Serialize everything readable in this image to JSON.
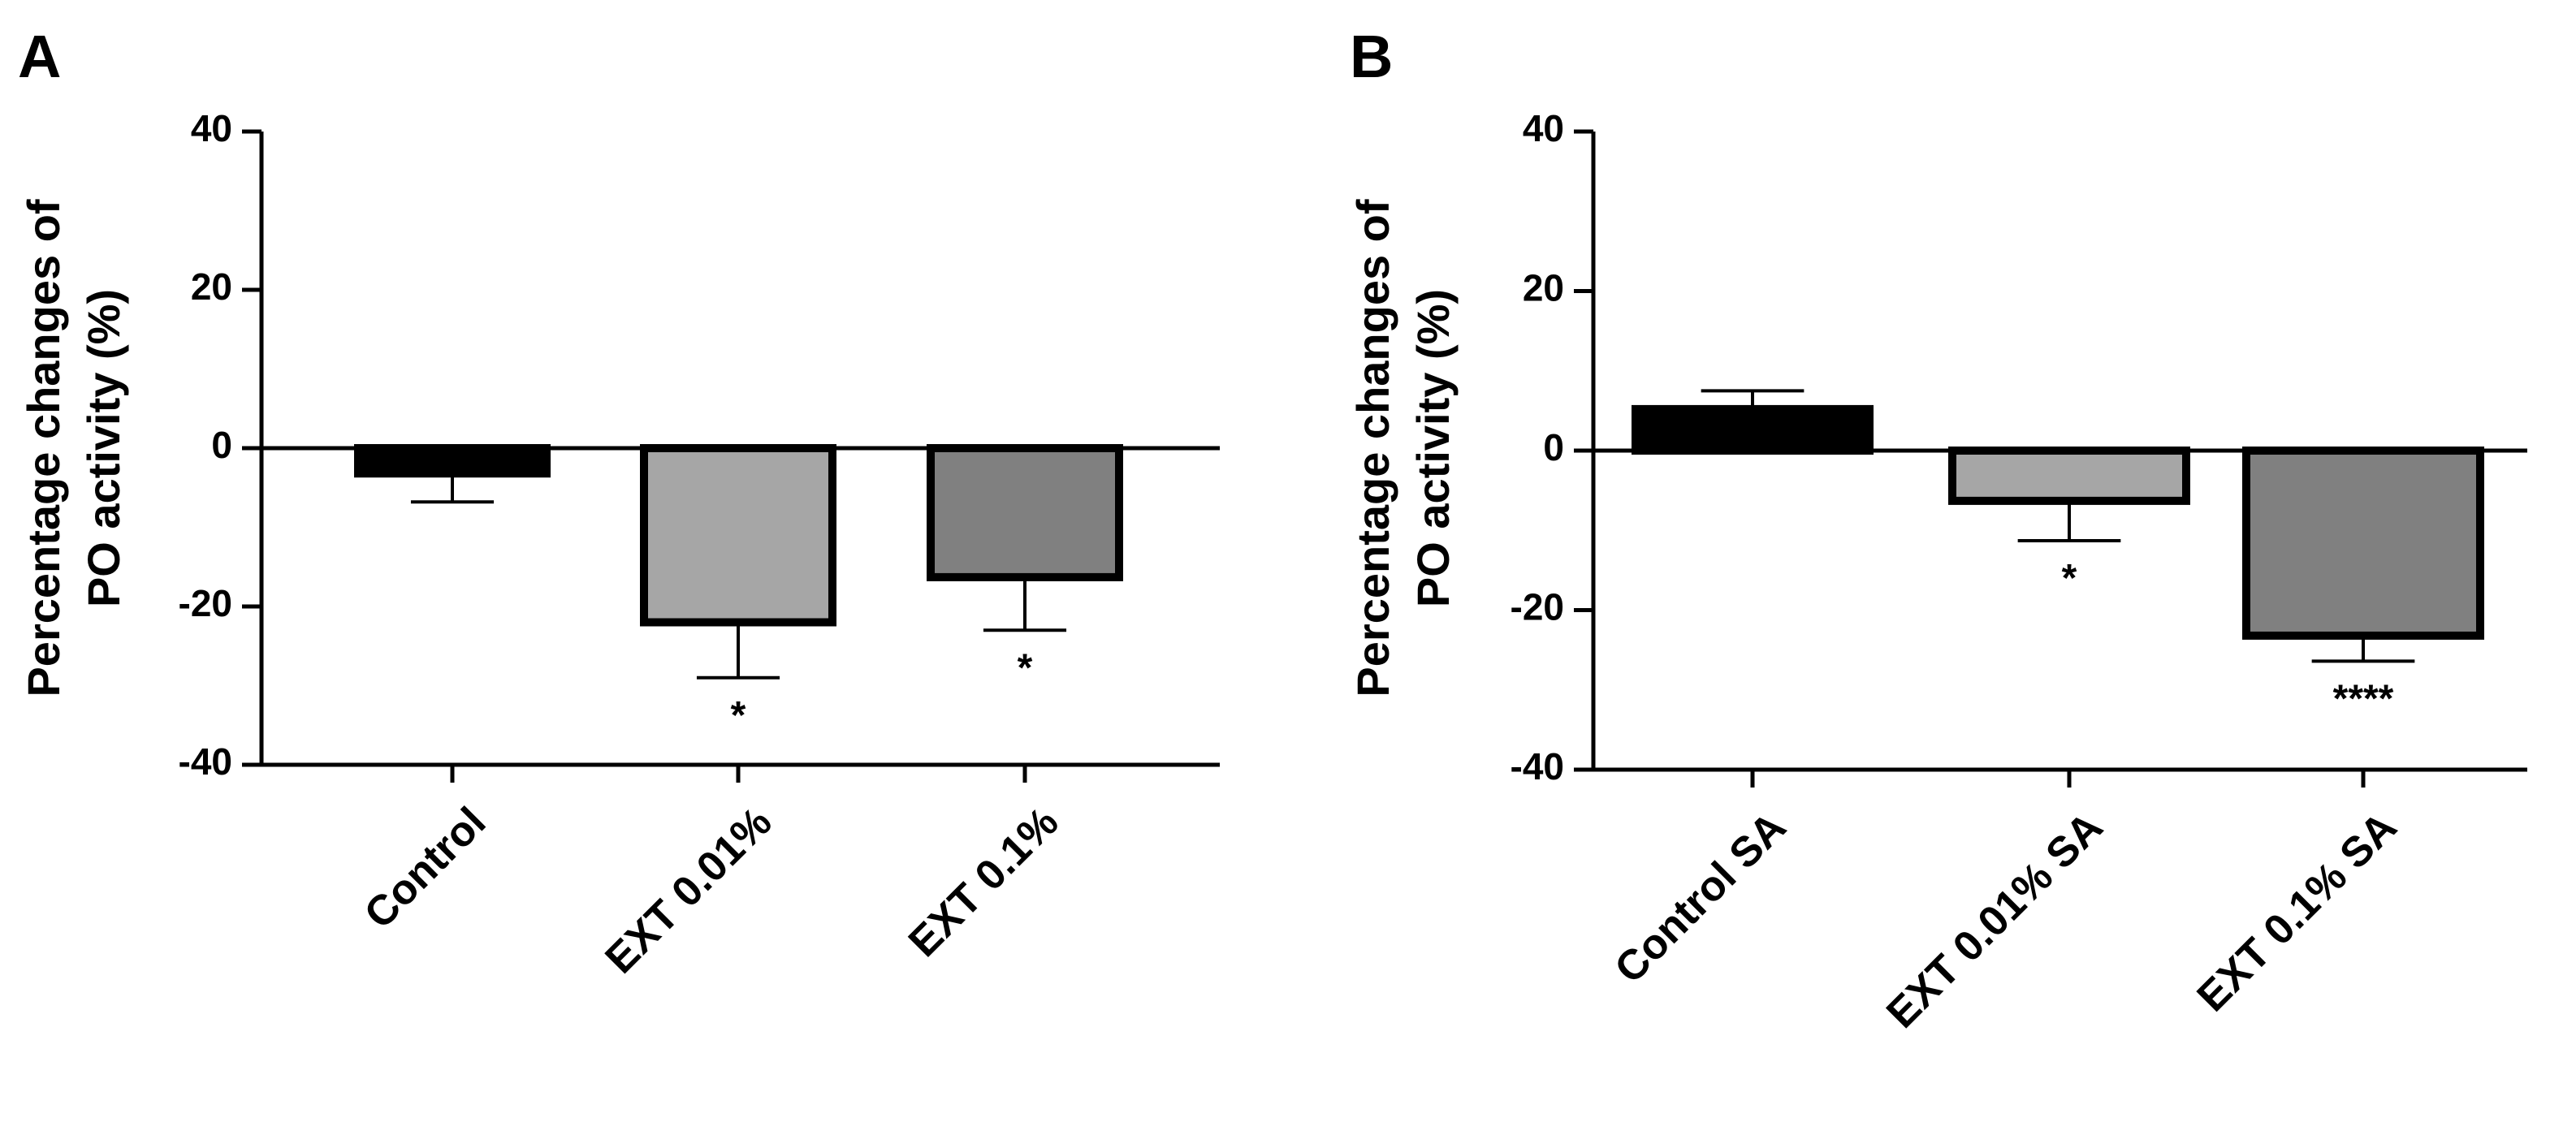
{
  "chart_data": [
    {
      "panel": "A",
      "type": "bar",
      "title": "",
      "ylabel_lines": [
        "Percentage changes of",
        "PO activity (%)"
      ],
      "xlabel": "",
      "ylim": [
        -40,
        40
      ],
      "yticks": [
        40,
        20,
        0,
        -20,
        -40
      ],
      "ytick_labels": [
        "40",
        "20",
        "0",
        "-20",
        "-40"
      ],
      "categories": [
        "Control",
        "EXT 0.01%",
        "EXT 0.1%"
      ],
      "values": [
        -3.2,
        -22.0,
        -16.3
      ],
      "error_minus": [
        3.6,
        7.0,
        6.7
      ],
      "significance": [
        "",
        "*",
        "*"
      ],
      "bar_colors": [
        "#000000",
        "#a6a6a6",
        "#808080"
      ]
    },
    {
      "panel": "B",
      "type": "bar",
      "title": "",
      "ylabel_lines": [
        "Percentage changes of",
        "PO activity (%)"
      ],
      "xlabel": "",
      "ylim": [
        -40,
        40
      ],
      "yticks": [
        40,
        20,
        0,
        -20,
        -40
      ],
      "ytick_labels": [
        "40",
        "20",
        "0",
        "-20",
        "-40"
      ],
      "categories": [
        "Control SA",
        "EXT 0.01% SA",
        "EXT 0.1% SA"
      ],
      "values": [
        5.2,
        -6.3,
        -23.2
      ],
      "error_plus": [
        2.3,
        0,
        0
      ],
      "error_minus": [
        0,
        5.0,
        3.2
      ],
      "significance": [
        "",
        "*",
        "****"
      ],
      "bar_colors": [
        "#000000",
        "#a6a6a6",
        "#808080"
      ]
    }
  ],
  "colors": {
    "axis": "#000000",
    "bar_outline": "#000000"
  }
}
